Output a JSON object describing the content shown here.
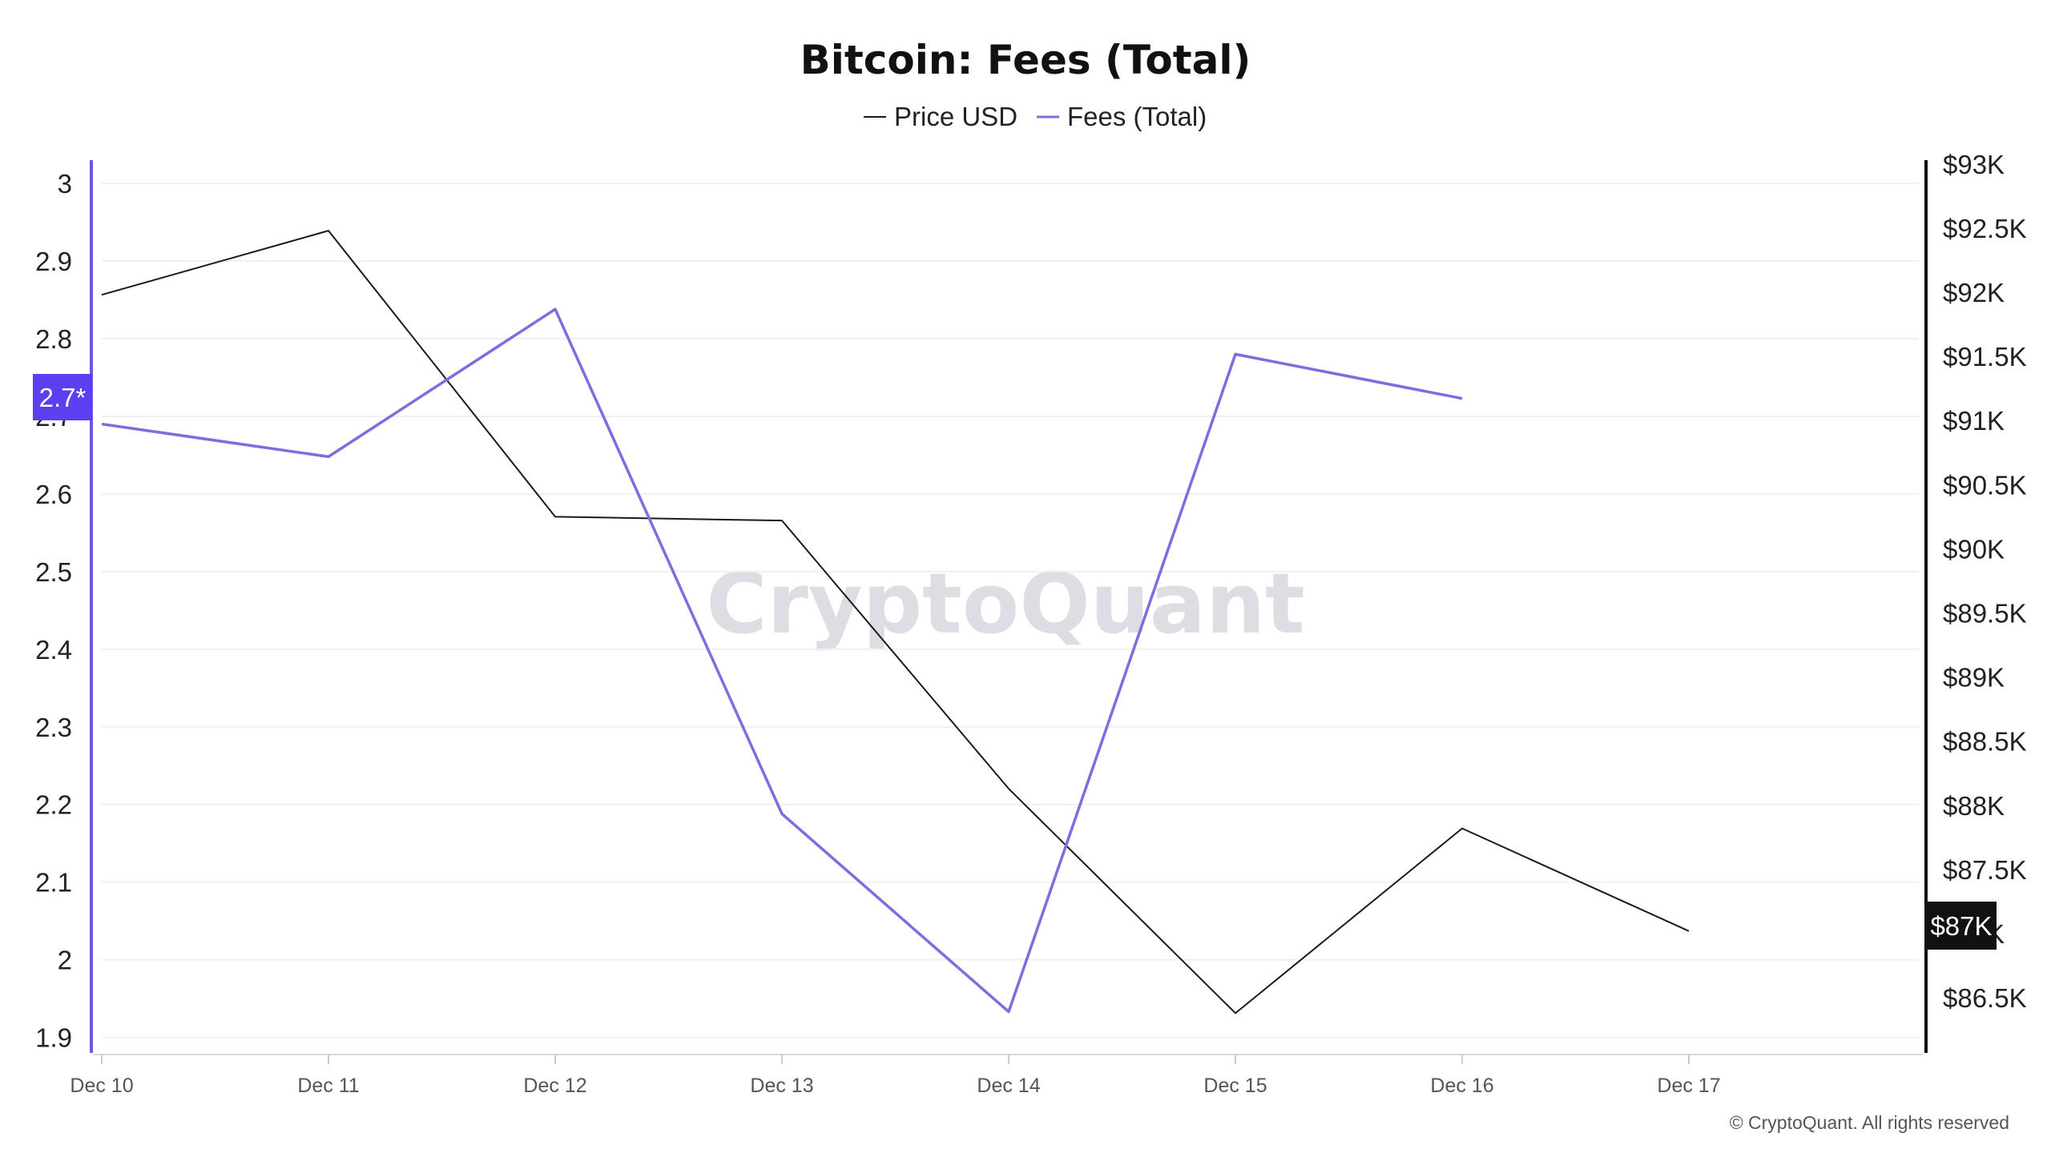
{
  "title": "Bitcoin: Fees (Total)",
  "watermark": "CryptoQuant",
  "copyright": "© CryptoQuant. All rights reserved",
  "colors": {
    "price": "#1a1a1a",
    "fees": "#7b6ee0",
    "left_axis": "#6a5ae0",
    "left_badge": "#5b3ff0",
    "right_badge": "#111111",
    "grid": "#f0f0f3"
  },
  "badges": {
    "left": "2.7*",
    "right": "$87K"
  },
  "chart_data": {
    "type": "line",
    "title": "Bitcoin: Fees (Total)",
    "x": [
      "Dec 10",
      "Dec 11",
      "Dec 12",
      "Dec 13",
      "Dec 14",
      "Dec 15",
      "Dec 16",
      "Dec 17"
    ],
    "left_axis": {
      "ticks": [
        3,
        2.9,
        2.8,
        2.7,
        2.6,
        2.5,
        2.4,
        2.3,
        2.2,
        2.1,
        2,
        1.9
      ],
      "tick_labels": [
        "3",
        "2.9",
        "2.8",
        "2.7",
        "2.6",
        "2.5",
        "2.4",
        "2.3",
        "2.2",
        "2.1",
        "2",
        "1.9"
      ],
      "range": [
        1.88,
        3.03
      ]
    },
    "right_axis": {
      "ticks": [
        93000,
        92500,
        92000,
        91500,
        91000,
        90500,
        90000,
        89500,
        89000,
        88500,
        88000,
        87500,
        87000,
        86500
      ],
      "tick_labels": [
        "$93K",
        "$92.5K",
        "$92K",
        "$91.5K",
        "$91K",
        "$90.5K",
        "$90K",
        "$89.5K",
        "$89K",
        "$88.5K",
        "$88K",
        "$87.5K",
        "$87K",
        "$86.5K"
      ],
      "range": [
        86070,
        93030
      ]
    },
    "series": [
      {
        "name": "Price USD",
        "axis": "right",
        "values": [
          91980,
          92480,
          90250,
          90220,
          88130,
          86380,
          87820,
          87020
        ]
      },
      {
        "name": "Fees (Total)",
        "axis": "left",
        "values": [
          2.69,
          2.648,
          2.838,
          2.188,
          1.933,
          2.78,
          2.723,
          null
        ]
      }
    ],
    "grid": true,
    "legend_position": "top-center"
  }
}
